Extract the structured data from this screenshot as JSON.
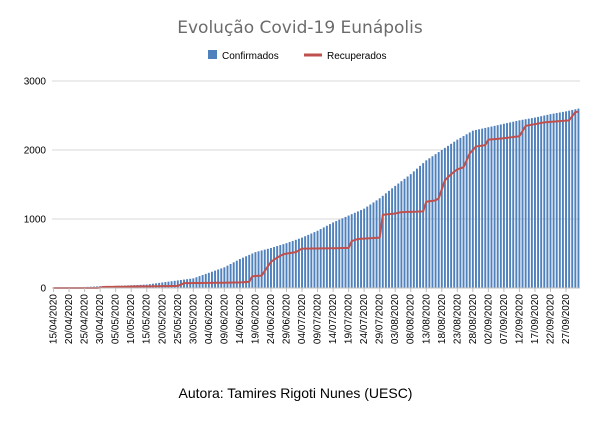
{
  "chart_data": {
    "type": "bar+line",
    "title": "Evolução Covid-19 Eunápolis",
    "xlabel": "",
    "ylabel": "",
    "ylim": [
      0,
      3000
    ],
    "yticks": [
      "0",
      "1000",
      "2000",
      "3000"
    ],
    "grid": true,
    "legend_position": "top",
    "x_start": "15/04/2020",
    "x_end": "01/10/2020",
    "x_tick_labels": [
      "15/04/2020",
      "20/04/2020",
      "25/04/2020",
      "30/04/2020",
      "05/05/2020",
      "10/05/2020",
      "15/05/2020",
      "20/05/2020",
      "25/05/2020",
      "30/05/2020",
      "04/06/2020",
      "09/06/2020",
      "14/06/2020",
      "19/06/2020",
      "24/06/2020",
      "29/06/2020",
      "04/07/2020",
      "09/07/2020",
      "14/07/2020",
      "19/07/2020",
      "24/07/2020",
      "29/07/2020",
      "03/08/2020",
      "08/08/2020",
      "13/08/2020",
      "18/08/2020",
      "23/08/2020",
      "28/08/2020",
      "02/09/2020",
      "07/09/2020",
      "12/09/2020",
      "17/09/2020",
      "22/09/2020",
      "27/09/2020"
    ],
    "series": [
      {
        "name": "Confirmados",
        "type": "bar",
        "color": "#4f81bd",
        "points": [
          [
            0,
            5
          ],
          [
            5,
            10
          ],
          [
            10,
            15
          ],
          [
            15,
            25
          ],
          [
            20,
            30
          ],
          [
            25,
            40
          ],
          [
            30,
            50
          ],
          [
            35,
            80
          ],
          [
            40,
            110
          ],
          [
            45,
            140
          ],
          [
            50,
            220
          ],
          [
            55,
            300
          ],
          [
            60,
            420
          ],
          [
            65,
            520
          ],
          [
            70,
            580
          ],
          [
            75,
            650
          ],
          [
            80,
            730
          ],
          [
            85,
            830
          ],
          [
            90,
            950
          ],
          [
            95,
            1050
          ],
          [
            100,
            1150
          ],
          [
            105,
            1300
          ],
          [
            110,
            1480
          ],
          [
            115,
            1650
          ],
          [
            120,
            1850
          ],
          [
            125,
            2000
          ],
          [
            130,
            2150
          ],
          [
            135,
            2280
          ],
          [
            140,
            2330
          ],
          [
            145,
            2380
          ],
          [
            150,
            2430
          ],
          [
            155,
            2470
          ],
          [
            160,
            2520
          ],
          [
            165,
            2560
          ],
          [
            170,
            2610
          ],
          [
            175,
            2650
          ],
          [
            180,
            2700
          ],
          [
            185,
            2740
          ]
        ]
      },
      {
        "name": "Recuperados",
        "type": "line",
        "color": "#c0504d",
        "points": [
          [
            0,
            0
          ],
          [
            14,
            0
          ],
          [
            15,
            5
          ],
          [
            16,
            15
          ],
          [
            40,
            30
          ],
          [
            42,
            70
          ],
          [
            60,
            80
          ],
          [
            63,
            90
          ],
          [
            64,
            170
          ],
          [
            67,
            180
          ],
          [
            70,
            380
          ],
          [
            72,
            440
          ],
          [
            74,
            490
          ],
          [
            78,
            520
          ],
          [
            80,
            570
          ],
          [
            95,
            580
          ],
          [
            96,
            680
          ],
          [
            98,
            710
          ],
          [
            105,
            730
          ],
          [
            106,
            1060
          ],
          [
            110,
            1080
          ],
          [
            112,
            1100
          ],
          [
            119,
            1110
          ],
          [
            120,
            1250
          ],
          [
            123,
            1270
          ],
          [
            124,
            1300
          ],
          [
            126,
            1560
          ],
          [
            128,
            1650
          ],
          [
            130,
            1720
          ],
          [
            132,
            1750
          ],
          [
            134,
            1950
          ],
          [
            136,
            2050
          ],
          [
            139,
            2070
          ],
          [
            140,
            2150
          ],
          [
            145,
            2170
          ],
          [
            150,
            2200
          ],
          [
            152,
            2350
          ],
          [
            158,
            2400
          ],
          [
            166,
            2430
          ],
          [
            168,
            2550
          ],
          [
            172,
            2570
          ],
          [
            178,
            2570
          ],
          [
            180,
            2590
          ],
          [
            182,
            2600
          ],
          [
            185,
            2610
          ]
        ]
      }
    ]
  },
  "footer": {
    "author": "Autora: Tamires Rigoti Nunes (UESC)"
  }
}
